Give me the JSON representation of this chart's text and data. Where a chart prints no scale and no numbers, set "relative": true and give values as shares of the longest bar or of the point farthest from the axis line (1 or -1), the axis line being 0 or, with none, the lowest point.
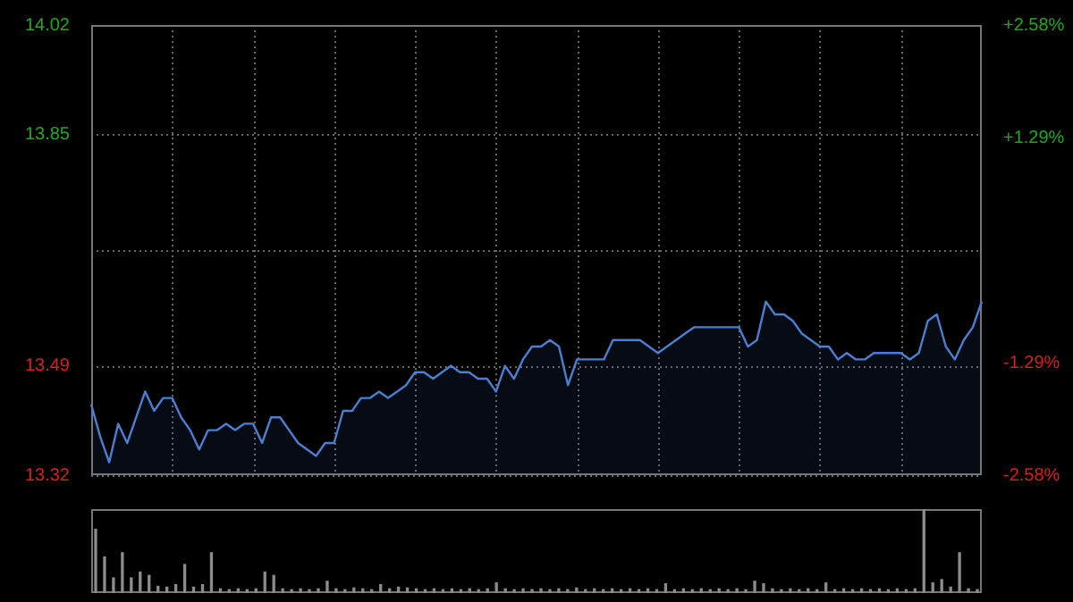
{
  "chart_data": [
    {
      "type": "area",
      "categories": [
        null,
        null,
        null,
        null,
        null,
        null,
        null,
        null,
        null,
        null,
        null,
        null,
        null,
        null,
        null,
        null,
        null,
        null,
        null,
        null,
        null,
        null,
        null,
        null,
        null,
        null,
        null,
        null,
        null,
        null,
        null,
        null,
        null,
        null,
        null,
        null,
        null,
        null,
        null,
        null,
        null,
        null,
        null,
        null,
        null,
        null,
        null,
        null,
        null,
        null,
        null,
        null,
        null,
        null,
        null,
        null,
        null,
        null,
        null,
        null,
        null,
        null,
        null,
        null,
        null,
        null,
        null,
        null,
        null,
        null,
        null,
        null,
        null,
        null,
        null,
        null,
        null,
        null,
        null,
        null,
        null,
        null,
        null,
        null,
        null,
        null,
        null,
        null,
        null,
        null,
        null,
        null,
        null,
        null,
        null,
        null,
        null,
        null,
        null,
        null
      ],
      "series": [
        {
          "color": "#4a7fd4",
          "values": [
            13.43,
            13.38,
            13.34,
            13.4,
            13.37,
            13.41,
            13.45,
            13.42,
            13.44,
            13.44,
            13.41,
            13.39,
            13.36,
            13.39,
            13.39,
            13.4,
            13.39,
            13.4,
            13.4,
            13.37,
            13.41,
            13.41,
            13.39,
            13.37,
            13.36,
            13.35,
            13.37,
            13.37,
            13.42,
            13.42,
            13.44,
            13.44,
            13.45,
            13.44,
            13.45,
            13.46,
            13.48,
            13.48,
            13.47,
            13.48,
            13.49,
            13.48,
            13.48,
            13.47,
            13.47,
            13.45,
            13.49,
            13.47,
            13.5,
            13.52,
            13.52,
            13.53,
            13.52,
            13.46,
            13.5,
            13.5,
            13.5,
            13.5,
            13.53,
            13.53,
            13.53,
            13.53,
            13.52,
            13.51,
            13.52,
            13.53,
            13.54,
            13.55,
            13.55,
            13.55,
            13.55,
            13.55,
            13.55,
            13.52,
            13.53,
            13.59,
            13.57,
            13.57,
            13.56,
            13.54,
            13.53,
            13.52,
            13.52,
            13.5,
            13.51,
            13.5,
            13.5,
            13.51,
            13.51,
            13.51,
            13.51,
            13.5,
            13.51,
            13.56,
            13.57,
            13.52,
            13.5,
            13.53,
            13.55,
            13.59
          ]
        }
      ],
      "ylim": [
        13.32,
        14.02
      ],
      "yticks": [
        13.32,
        13.49,
        {
          "value": 13.67,
          "label": null
        },
        13.85,
        14.02
      ],
      "y2lim": [
        -2.58,
        2.58
      ],
      "y2ticks": [
        {
          "value": -2.58,
          "label": "-2.58%"
        },
        {
          "value": -1.29,
          "label": "-1.29%"
        },
        {
          "value": 0,
          "label": null
        },
        {
          "value": 1.29,
          "label": "+1.29%"
        },
        {
          "value": 2.58,
          "label": "+2.58%"
        }
      ],
      "grid": true
    },
    {
      "type": "bar",
      "relative": true,
      "categories": [
        null,
        null,
        null,
        null,
        null,
        null,
        null,
        null,
        null,
        null,
        null,
        null,
        null,
        null,
        null,
        null,
        null,
        null,
        null,
        null,
        null,
        null,
        null,
        null,
        null,
        null,
        null,
        null,
        null,
        null,
        null,
        null,
        null,
        null,
        null,
        null,
        null,
        null,
        null,
        null,
        null,
        null,
        null,
        null,
        null,
        null,
        null,
        null,
        null,
        null,
        null,
        null,
        null,
        null,
        null,
        null,
        null,
        null,
        null,
        null,
        null,
        null,
        null,
        null,
        null,
        null,
        null,
        null,
        null,
        null,
        null,
        null,
        null,
        null,
        null,
        null,
        null,
        null,
        null,
        null,
        null,
        null,
        null,
        null,
        null,
        null,
        null,
        null,
        null,
        null,
        null,
        null,
        null,
        null,
        null,
        null,
        null,
        null,
        null,
        null
      ],
      "color": "#8c8c8c",
      "values": [
        0.76,
        0.43,
        0.18,
        0.48,
        0.18,
        0.25,
        0.21,
        0.08,
        0.07,
        0.1,
        0.34,
        0.07,
        0.1,
        0.48,
        0.05,
        0.04,
        0.05,
        0.04,
        0.05,
        0.25,
        0.21,
        0.05,
        0.04,
        0.05,
        0.04,
        0.05,
        0.14,
        0.05,
        0.04,
        0.06,
        0.05,
        0.04,
        0.1,
        0.05,
        0.07,
        0.06,
        0.05,
        0.04,
        0.05,
        0.04,
        0.05,
        0.04,
        0.05,
        0.04,
        0.05,
        0.12,
        0.05,
        0.04,
        0.05,
        0.04,
        0.05,
        0.04,
        0.05,
        0.04,
        0.06,
        0.04,
        0.05,
        0.04,
        0.05,
        0.04,
        0.05,
        0.04,
        0.05,
        0.04,
        0.11,
        0.04,
        0.05,
        0.04,
        0.05,
        0.04,
        0.05,
        0.04,
        0.05,
        0.04,
        0.14,
        0.11,
        0.05,
        0.04,
        0.05,
        0.04,
        0.05,
        0.04,
        0.12,
        0.04,
        0.05,
        0.04,
        0.05,
        0.04,
        0.05,
        0.04,
        0.05,
        0.04,
        0.05,
        1.0,
        0.12,
        0.16,
        0.07,
        0.48,
        0.05,
        0.04
      ]
    }
  ]
}
